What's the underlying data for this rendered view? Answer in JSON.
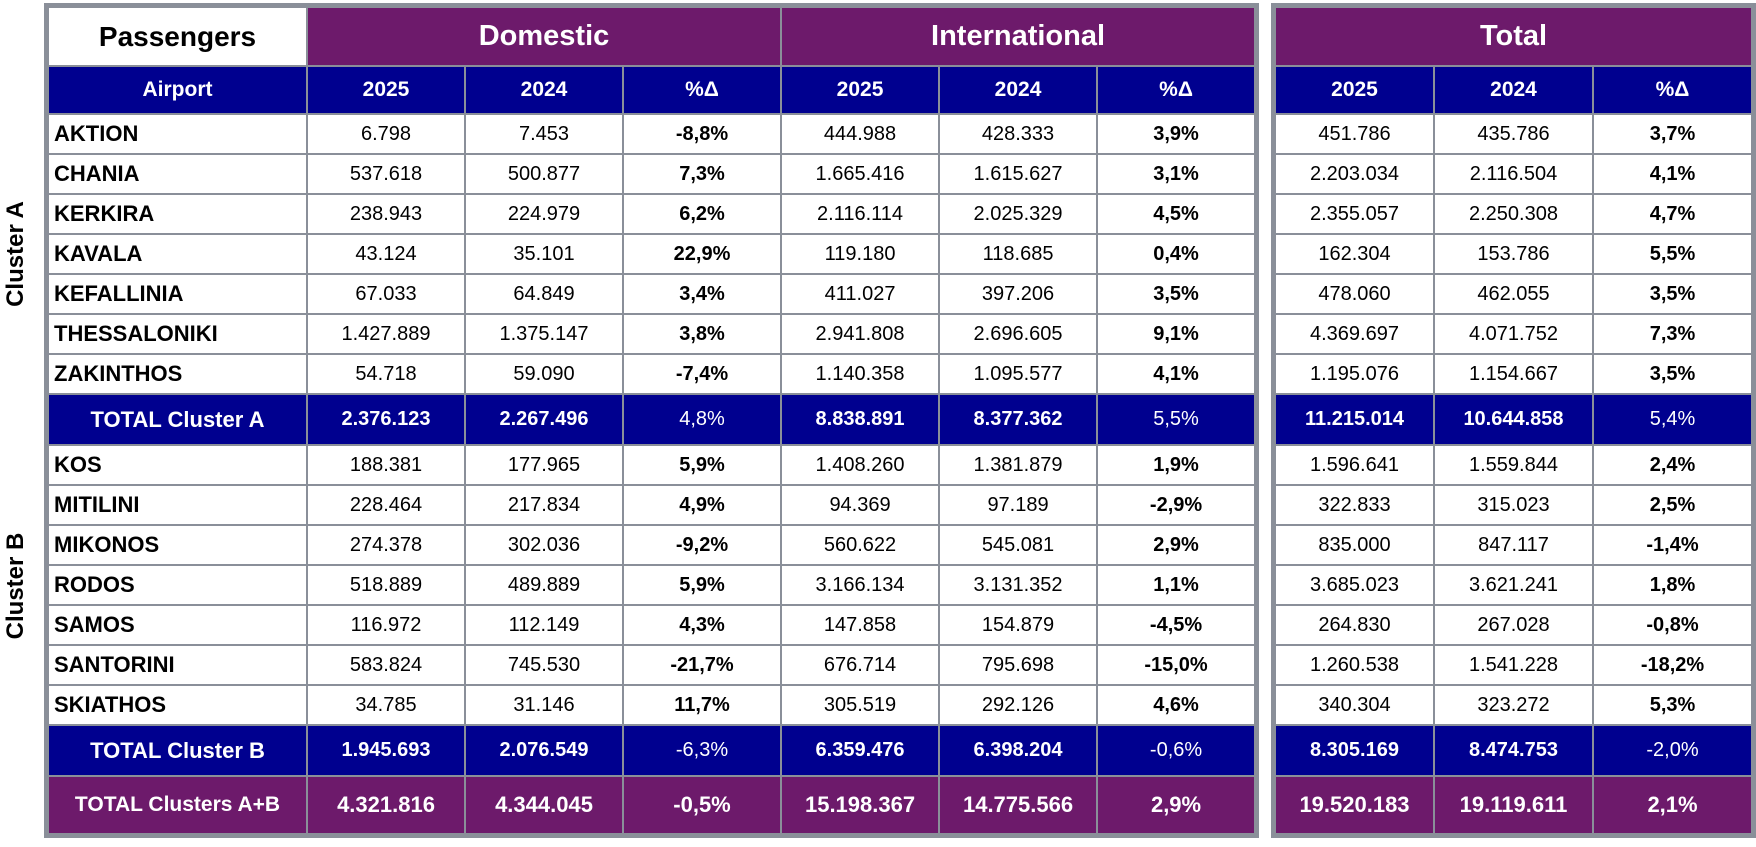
{
  "header": {
    "corner": "Passengers",
    "group_domestic": "Domestic",
    "group_international": "International",
    "group_total": "Total",
    "col_airport": "Airport",
    "year_current": "2025",
    "year_previous": "2024",
    "pct_label": "%Δ"
  },
  "cluster_labels": {
    "a": "Cluster A",
    "b": "Cluster B"
  },
  "rows": [
    {
      "type": "airport",
      "name": "AKTION",
      "d25": "6.798",
      "d24": "7.453",
      "dp": "-8,8%",
      "i25": "444.988",
      "i24": "428.333",
      "ip": "3,9%",
      "t25": "451.786",
      "t24": "435.786",
      "tp": "3,7%"
    },
    {
      "type": "airport",
      "name": "CHANIA",
      "d25": "537.618",
      "d24": "500.877",
      "dp": "7,3%",
      "i25": "1.665.416",
      "i24": "1.615.627",
      "ip": "3,1%",
      "t25": "2.203.034",
      "t24": "2.116.504",
      "tp": "4,1%"
    },
    {
      "type": "airport",
      "name": "KERKIRA",
      "d25": "238.943",
      "d24": "224.979",
      "dp": "6,2%",
      "i25": "2.116.114",
      "i24": "2.025.329",
      "ip": "4,5%",
      "t25": "2.355.057",
      "t24": "2.250.308",
      "tp": "4,7%"
    },
    {
      "type": "airport",
      "name": "KAVALA",
      "d25": "43.124",
      "d24": "35.101",
      "dp": "22,9%",
      "i25": "119.180",
      "i24": "118.685",
      "ip": "0,4%",
      "t25": "162.304",
      "t24": "153.786",
      "tp": "5,5%"
    },
    {
      "type": "airport",
      "name": "KEFALLINIA",
      "d25": "67.033",
      "d24": "64.849",
      "dp": "3,4%",
      "i25": "411.027",
      "i24": "397.206",
      "ip": "3,5%",
      "t25": "478.060",
      "t24": "462.055",
      "tp": "3,5%"
    },
    {
      "type": "airport",
      "name": "THESSALONIKI",
      "d25": "1.427.889",
      "d24": "1.375.147",
      "dp": "3,8%",
      "i25": "2.941.808",
      "i24": "2.696.605",
      "ip": "9,1%",
      "t25": "4.369.697",
      "t24": "4.071.752",
      "tp": "7,3%"
    },
    {
      "type": "airport",
      "name": "ZAKINTHOS",
      "d25": "54.718",
      "d24": "59.090",
      "dp": "-7,4%",
      "i25": "1.140.358",
      "i24": "1.095.577",
      "ip": "4,1%",
      "t25": "1.195.076",
      "t24": "1.154.667",
      "tp": "3,5%"
    },
    {
      "type": "total-blue",
      "name": "TOTAL Cluster A",
      "d25": "2.376.123",
      "d24": "2.267.496",
      "dp": "4,8%",
      "i25": "8.838.891",
      "i24": "8.377.362",
      "ip": "5,5%",
      "t25": "11.215.014",
      "t24": "10.644.858",
      "tp": "5,4%"
    },
    {
      "type": "airport",
      "name": "KOS",
      "d25": "188.381",
      "d24": "177.965",
      "dp": "5,9%",
      "i25": "1.408.260",
      "i24": "1.381.879",
      "ip": "1,9%",
      "t25": "1.596.641",
      "t24": "1.559.844",
      "tp": "2,4%"
    },
    {
      "type": "airport",
      "name": "MITILINI",
      "d25": "228.464",
      "d24": "217.834",
      "dp": "4,9%",
      "i25": "94.369",
      "i24": "97.189",
      "ip": "-2,9%",
      "t25": "322.833",
      "t24": "315.023",
      "tp": "2,5%"
    },
    {
      "type": "airport",
      "name": "MIKONOS",
      "d25": "274.378",
      "d24": "302.036",
      "dp": "-9,2%",
      "i25": "560.622",
      "i24": "545.081",
      "ip": "2,9%",
      "t25": "835.000",
      "t24": "847.117",
      "tp": "-1,4%"
    },
    {
      "type": "airport",
      "name": "RODOS",
      "d25": "518.889",
      "d24": "489.889",
      "dp": "5,9%",
      "i25": "3.166.134",
      "i24": "3.131.352",
      "ip": "1,1%",
      "t25": "3.685.023",
      "t24": "3.621.241",
      "tp": "1,8%"
    },
    {
      "type": "airport",
      "name": "SAMOS",
      "d25": "116.972",
      "d24": "112.149",
      "dp": "4,3%",
      "i25": "147.858",
      "i24": "154.879",
      "ip": "-4,5%",
      "t25": "264.830",
      "t24": "267.028",
      "tp": "-0,8%"
    },
    {
      "type": "airport",
      "name": "SANTORINI",
      "d25": "583.824",
      "d24": "745.530",
      "dp": "-21,7%",
      "i25": "676.714",
      "i24": "795.698",
      "ip": "-15,0%",
      "t25": "1.260.538",
      "t24": "1.541.228",
      "tp": "-18,2%"
    },
    {
      "type": "airport",
      "name": "SKIATHOS",
      "d25": "34.785",
      "d24": "31.146",
      "dp": "11,7%",
      "i25": "305.519",
      "i24": "292.126",
      "ip": "4,6%",
      "t25": "340.304",
      "t24": "323.272",
      "tp": "5,3%"
    },
    {
      "type": "total-blue",
      "name": "TOTAL Cluster B",
      "d25": "1.945.693",
      "d24": "2.076.549",
      "dp": "-6,3%",
      "i25": "6.359.476",
      "i24": "6.398.204",
      "ip": "-0,6%",
      "t25": "8.305.169",
      "t24": "8.474.753",
      "tp": "-2,0%"
    },
    {
      "type": "total-purple",
      "name": "TOTAL Clusters A+B",
      "d25": "4.321.816",
      "d24": "4.344.045",
      "dp": "-0,5%",
      "i25": "15.198.367",
      "i24": "14.775.566",
      "ip": "2,9%",
      "t25": "19.520.183",
      "t24": "19.119.611",
      "tp": "2,1%"
    }
  ]
}
